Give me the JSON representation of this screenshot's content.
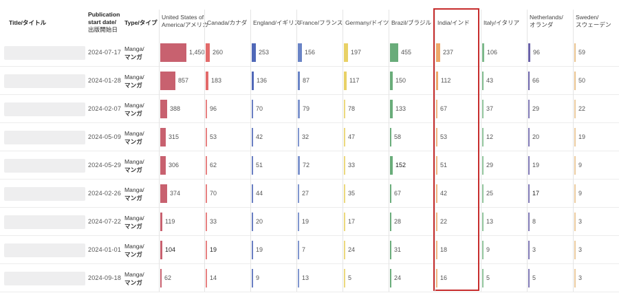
{
  "header": {
    "title_col": "Title/タイトル",
    "date_col_lines": [
      "Publication",
      "start date/",
      "出版開始日"
    ],
    "type_col": "Type/タイプ",
    "countries": [
      {
        "lines": [
          "United States of",
          "America/アメリカ"
        ],
        "color": "#c8616f"
      },
      {
        "lines": [
          "Canada/カナダ"
        ],
        "color": "#e26a6a"
      },
      {
        "lines": [
          "England/イギリス"
        ],
        "color": "#5068b8"
      },
      {
        "lines": [
          "France/フランス"
        ],
        "color": "#6a84c6"
      },
      {
        "lines": [
          "Germany/ドイツ"
        ],
        "color": "#e8d166"
      },
      {
        "lines": [
          "Brazil/ブラジル"
        ],
        "color": "#69ac7a"
      },
      {
        "lines": [
          "India/インド"
        ],
        "color": "#eda86a"
      },
      {
        "lines": [
          "Italy/イタリア"
        ],
        "color": "#7cb88a"
      },
      {
        "lines": [
          "Netherlands/",
          "オランダ"
        ],
        "color": "#6a62a8"
      },
      {
        "lines": [
          "Sweden/",
          "スウェーデン"
        ],
        "color": "#e8c28e"
      }
    ]
  },
  "rows": [
    {
      "date": "2024-07-17",
      "type": [
        "Manga/",
        "マンガ"
      ],
      "values": [
        "1,450",
        "260",
        "253",
        "156",
        "197",
        "455",
        "237",
        "106",
        "96",
        "59"
      ]
    },
    {
      "date": "2024-01-28",
      "type": [
        "Manga/",
        "マンガ"
      ],
      "values": [
        "857",
        "183",
        "136",
        "87",
        "117",
        "150",
        "112",
        "43",
        "66",
        "50"
      ]
    },
    {
      "date": "2024-02-07",
      "type": [
        "Manga/",
        "マンガ"
      ],
      "values": [
        "388",
        "96",
        "70",
        "79",
        "78",
        "133",
        "67",
        "37",
        "29",
        "22"
      ]
    },
    {
      "date": "2024-05-09",
      "type": [
        "Manga/",
        "マンガ"
      ],
      "values": [
        "315",
        "53",
        "42",
        "32",
        "47",
        "58",
        "53",
        "12",
        "20",
        "19"
      ]
    },
    {
      "date": "2024-05-29",
      "type": [
        "Manga/",
        "マンガ"
      ],
      "values": [
        "306",
        "62",
        "51",
        "72",
        "33",
        "152",
        "51",
        "29",
        "19",
        "9"
      ]
    },
    {
      "date": "2024-02-26",
      "type": [
        "Manga/",
        "マンガ"
      ],
      "values": [
        "374",
        "70",
        "44",
        "27",
        "35",
        "67",
        "42",
        "25",
        "17",
        "9"
      ]
    },
    {
      "date": "2024-07-22",
      "type": [
        "Manga/",
        "マンガ"
      ],
      "values": [
        "119",
        "33",
        "20",
        "19",
        "17",
        "28",
        "22",
        "13",
        "8",
        "3"
      ]
    },
    {
      "date": "2024-01-01",
      "type": [
        "Manga/",
        "マンガ"
      ],
      "values": [
        "104",
        "19",
        "19",
        "7",
        "24",
        "31",
        "18",
        "9",
        "3",
        "3"
      ]
    },
    {
      "date": "2024-09-18",
      "type": [
        "Manga/",
        "マンガ"
      ],
      "values": [
        "62",
        "14",
        "9",
        "13",
        "5",
        "24",
        "16",
        "5",
        "5",
        "3"
      ]
    }
  ],
  "highlight": {
    "column": "India/インド",
    "color": "#c62b2b"
  }
}
